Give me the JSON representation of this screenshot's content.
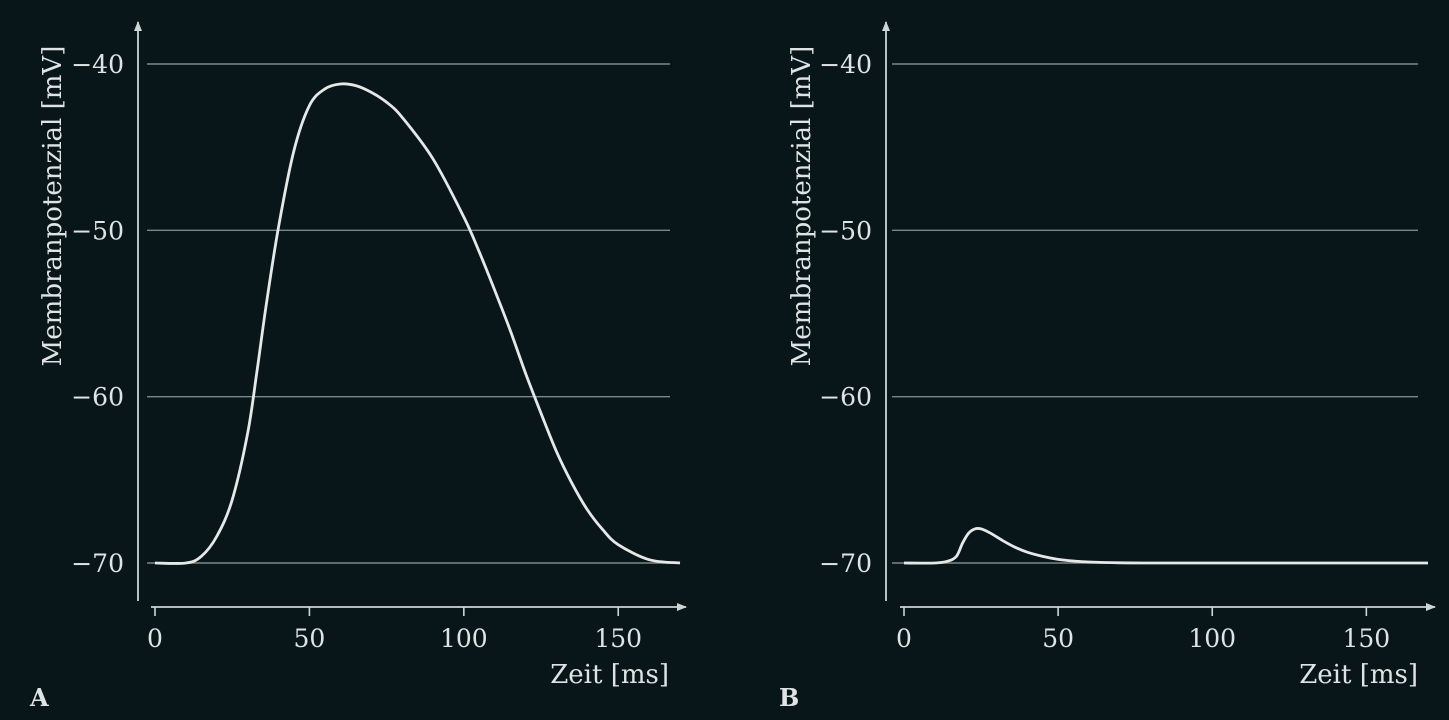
{
  "colors": {
    "background": "#08161a",
    "line": "#e6e8e8",
    "grid": "#7c8788",
    "axis": "#cfd4d5",
    "text": "#dfe3e3"
  },
  "chart_data": [
    {
      "panel": "A",
      "type": "line",
      "xlabel": "Zeit [ms]",
      "ylabel": "Membranpotenzial [mV]",
      "xlim": [
        0,
        170
      ],
      "ylim": [
        -72,
        -38
      ],
      "xticks": [
        0,
        50,
        100,
        150
      ],
      "xtick_labels": [
        "0",
        "50",
        "100",
        "150"
      ],
      "yticks": [
        -40,
        -50,
        -60,
        -70
      ],
      "ytick_labels": [
        "−40",
        "−50",
        "−60",
        "−70"
      ],
      "grid": "horizontal at y ticks",
      "series": [
        {
          "x": [
            0,
            10,
            15,
            20,
            25,
            30,
            33,
            36,
            40,
            45,
            50,
            55,
            60,
            65,
            70,
            75,
            80,
            90,
            100,
            105,
            110,
            115,
            120,
            125,
            130,
            135,
            140,
            145,
            150,
            160,
            170
          ],
          "y": [
            -70,
            -70,
            -69.6,
            -68.4,
            -66.2,
            -62.2,
            -58.5,
            -54.5,
            -49.8,
            -45.2,
            -42.5,
            -41.5,
            -41.2,
            -41.3,
            -41.7,
            -42.3,
            -43.2,
            -45.7,
            -49.2,
            -51.3,
            -53.6,
            -56,
            -58.6,
            -61,
            -63.3,
            -65.2,
            -66.8,
            -68,
            -68.9,
            -69.8,
            -70
          ]
        }
      ]
    },
    {
      "panel": "B",
      "type": "line",
      "xlabel": "Zeit [ms]",
      "ylabel": "Membranpotenzial [mV]",
      "xlim": [
        0,
        170
      ],
      "ylim": [
        -72,
        -38
      ],
      "xticks": [
        0,
        50,
        100,
        150
      ],
      "xtick_labels": [
        "0",
        "50",
        "100",
        "150"
      ],
      "yticks": [
        -40,
        -50,
        -60,
        -70
      ],
      "ytick_labels": [
        "−40",
        "−50",
        "−60",
        "−70"
      ],
      "grid": "horizontal at y ticks",
      "series": [
        {
          "x": [
            0,
            10,
            14,
            17,
            19,
            21,
            23,
            25,
            28,
            32,
            36,
            40,
            45,
            50,
            55,
            60,
            70,
            80,
            100,
            130,
            170
          ],
          "y": [
            -70,
            -70,
            -69.9,
            -69.6,
            -68.8,
            -68.2,
            -67.95,
            -67.95,
            -68.2,
            -68.65,
            -69.05,
            -69.35,
            -69.6,
            -69.78,
            -69.88,
            -69.94,
            -69.99,
            -70,
            -70,
            -70,
            -70
          ]
        }
      ]
    }
  ]
}
